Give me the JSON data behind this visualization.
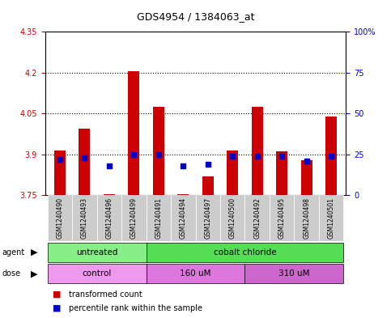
{
  "title": "GDS4954 / 1384063_at",
  "samples": [
    "GSM1240490",
    "GSM1240493",
    "GSM1240496",
    "GSM1240499",
    "GSM1240491",
    "GSM1240494",
    "GSM1240497",
    "GSM1240500",
    "GSM1240492",
    "GSM1240495",
    "GSM1240498",
    "GSM1240501"
  ],
  "bar_values": [
    3.915,
    3.995,
    3.755,
    4.205,
    4.075,
    3.755,
    3.82,
    3.915,
    4.075,
    3.91,
    3.88,
    4.04
  ],
  "bar_base": 3.75,
  "percentile_values": [
    22,
    23,
    18,
    25,
    25,
    18,
    19,
    24,
    24,
    24,
    21,
    24
  ],
  "ylim_left": [
    3.75,
    4.35
  ],
  "ylim_right": [
    0,
    100
  ],
  "yticks_left": [
    3.75,
    3.9,
    4.05,
    4.2,
    4.35
  ],
  "yticks_right": [
    0,
    25,
    50,
    75,
    100
  ],
  "ytick_labels_right": [
    "0",
    "25",
    "50",
    "75",
    "100%"
  ],
  "dotted_lines": [
    3.9,
    4.05,
    4.2
  ],
  "bar_color": "#cc0000",
  "dot_color": "#0000cc",
  "agent_groups": [
    {
      "label": "untreated",
      "start": 0,
      "end": 4,
      "color": "#88ee88"
    },
    {
      "label": "cobalt chloride",
      "start": 4,
      "end": 12,
      "color": "#55dd55"
    }
  ],
  "dose_groups": [
    {
      "label": "control",
      "start": 0,
      "end": 4,
      "color": "#ee99ee"
    },
    {
      "label": "160 uM",
      "start": 4,
      "end": 8,
      "color": "#dd77dd"
    },
    {
      "label": "310 uM",
      "start": 8,
      "end": 12,
      "color": "#cc66cc"
    }
  ],
  "bg_color": "#cccccc",
  "left_tick_color": "#cc0000",
  "right_tick_color": "#0000cc",
  "xtick_bg": "#cccccc"
}
